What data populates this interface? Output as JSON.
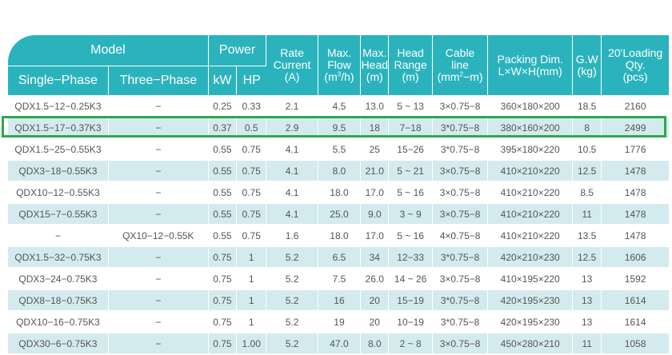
{
  "header": {
    "model": "Model",
    "single_phase": "Single−Phase",
    "three_phase": "Three−Phase",
    "power": "Power",
    "kw": "kW",
    "hp": "HP",
    "rate_current": [
      "Rate",
      "Current",
      "(A)"
    ],
    "max_flow": [
      "Max.",
      "Flow",
      "(m",
      "3",
      "/h)"
    ],
    "max_head": [
      "Max.",
      "Head",
      "(m)"
    ],
    "head_range": [
      "Head",
      "Range",
      "(m)"
    ],
    "cable_line": [
      "Cable",
      "line",
      "(mm",
      "2",
      "−m)"
    ],
    "packing_dim": [
      "Packing Dim.",
      "L×W×H(mm)"
    ],
    "gw": [
      "G.W",
      "(kg)"
    ],
    "loading_qty": [
      "20'Loading",
      "Qty.",
      "(pcs)"
    ]
  },
  "rows": [
    {
      "single": "QDX1.5−12−0.25K3",
      "three": "−",
      "kw": "0.25",
      "hp": "0.33",
      "current": "2.1",
      "flow": "4.5",
      "head": "13.0",
      "range": "5 ~ 13",
      "cable": "3×0.75−8",
      "dim": "360×180×200",
      "gw": "18.5",
      "qty": "2160"
    },
    {
      "single": "QDX1.5−17−0.37K3",
      "three": "−",
      "kw": "0.37",
      "hp": "0.5",
      "current": "2.9",
      "flow": "9.5",
      "head": "18",
      "range": "7−18",
      "cable": "3*0.75−8",
      "dim": "380×160×200",
      "gw": "8",
      "qty": "2499"
    },
    {
      "single": "QDX1.5−25−0.55K3",
      "three": "−",
      "kw": "0.55",
      "hp": "0.75",
      "current": "4.1",
      "flow": "5.5",
      "head": "25",
      "range": "15−26",
      "cable": "3*0.75−8",
      "dim": "395×180×220",
      "gw": "10.5",
      "qty": "1776"
    },
    {
      "single": "QDX3−18−0.55K3",
      "three": "−",
      "kw": "0.55",
      "hp": "0.75",
      "current": "4.1",
      "flow": "8.0",
      "head": "21.0",
      "range": "5 ~ 21",
      "cable": "3×0.75−8",
      "dim": "410×210×220",
      "gw": "12.5",
      "qty": "1478"
    },
    {
      "single": "QDX10−12−0.55K3",
      "three": "−",
      "kw": "0.55",
      "hp": "0.75",
      "current": "4.1",
      "flow": "18.0",
      "head": "17.0",
      "range": "5 ~ 16",
      "cable": "3×0.75−8",
      "dim": "410×210×220",
      "gw": "8.5",
      "qty": "1478"
    },
    {
      "single": "QDX15−7−0.55K3",
      "three": "−",
      "kw": "0.55",
      "hp": "0.75",
      "current": "4.1",
      "flow": "25.0",
      "head": "9.0",
      "range": "3 ~ 9",
      "cable": "3×0.75−8",
      "dim": "410×210×220",
      "gw": "11",
      "qty": "1478"
    },
    {
      "single": "−",
      "three": "QX10−12−0.55K",
      "kw": "0.55",
      "hp": "0.75",
      "current": "1.6",
      "flow": "18.0",
      "head": "17.0",
      "range": "5 ~ 16",
      "cable": "4×0.75−8",
      "dim": "410×210×220",
      "gw": "13.5",
      "qty": "1478"
    },
    {
      "single": "QDX1.5−32−0.75K3",
      "three": "−",
      "kw": "0.75",
      "hp": "1",
      "current": "5.2",
      "flow": "6.5",
      "head": "34",
      "range": "12−33",
      "cable": "3*0.75−8",
      "dim": "420×210×230",
      "gw": "12.5",
      "qty": "1606"
    },
    {
      "single": "QDX3−24−0.75K3",
      "three": "−",
      "kw": "0.75",
      "hp": "1",
      "current": "5.2",
      "flow": "7.5",
      "head": "26.0",
      "range": "14 ~ 26",
      "cable": "3×0.75−8",
      "dim": "410×195×220",
      "gw": "13",
      "qty": "1592"
    },
    {
      "single": "QDX8−18−0.75K3",
      "three": "−",
      "kw": "0.75",
      "hp": "1",
      "current": "5.2",
      "flow": "16",
      "head": "20",
      "range": "15−19",
      "cable": "3*0.75−8",
      "dim": "420×195×230",
      "gw": "13",
      "qty": "1614"
    },
    {
      "single": "QDX10−16−0.75K3",
      "three": "−",
      "kw": "0.75",
      "hp": "1",
      "current": "5.2",
      "flow": "19",
      "head": "20",
      "range": "10−19",
      "cable": "3*0.75−8",
      "dim": "420×195×230",
      "gw": "13",
      "qty": "1614"
    },
    {
      "single": "QDX30−6−0.75K3",
      "three": "−",
      "kw": "0.75",
      "hp": "1.00",
      "current": "5.2",
      "flow": "47.0",
      "head": "8.0",
      "range": "2 ~ 8",
      "cable": "3×0.75−8",
      "dim": "450×280×210",
      "gw": "11",
      "qty": "1058"
    }
  ],
  "colors": {
    "header": "#2bb3bd",
    "stripe": "#d3ebee",
    "highlight": "#2ea84a"
  }
}
